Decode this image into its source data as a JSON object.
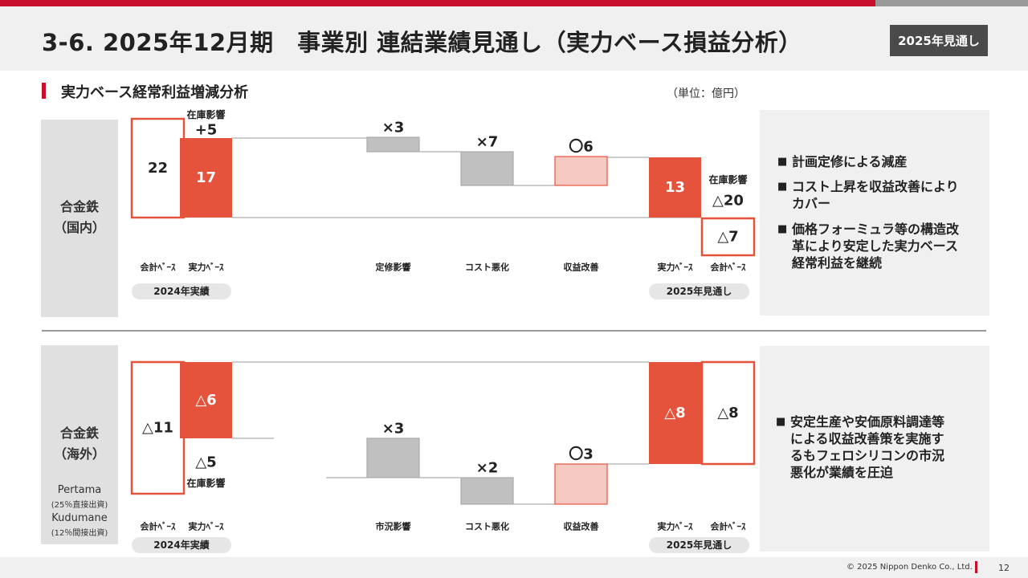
{
  "header": {
    "title": "3-6. 2025年12月期　事業別 連結業績見通し（実力ベース損益分析）",
    "badge": "2025年見通し"
  },
  "section": {
    "title": "実力ベース経常利益増減分析",
    "unit": "（単位：億円）"
  },
  "colors": {
    "accent_red": "#e5533d",
    "light_red": "#f6c8c2",
    "gray_bar": "#c0c0c0",
    "brand_red": "#c8102e"
  },
  "domestic": {
    "label_line1": "合金鉄",
    "label_line2": "（国内）",
    "period_start": "2024年実績",
    "period_end": "2025年見通し",
    "bullets": [
      [
        "計画定修による減産"
      ],
      [
        "コスト上昇を収益改善により",
        "カバー"
      ],
      [
        "価格フォーミュラ等の構造改",
        "革により安定した実力ベース",
        "経常利益を継続"
      ]
    ],
    "chart_data": {
      "type": "waterfall",
      "bars": [
        {
          "label": "会計ﾍﾞｰｽ",
          "value": "22",
          "style": "outline"
        },
        {
          "label": "実力ﾍﾞｰｽ",
          "value": "17",
          "style": "red",
          "note": "在庫影響",
          "note_value": "+5"
        },
        {
          "label": "定修影響",
          "value": "×3",
          "style": "gray"
        },
        {
          "label": "コスト悪化",
          "value": "×7",
          "style": "gray"
        },
        {
          "label": "収益改善",
          "value": "〇6",
          "style": "light"
        },
        {
          "label": "実力ﾍﾞｰｽ",
          "value": "13",
          "style": "red"
        },
        {
          "label": "会計ﾍﾞｰｽ",
          "value": "△7",
          "style": "outline",
          "note": "在庫影響",
          "note_value": "△20"
        }
      ]
    }
  },
  "overseas": {
    "label_line1": "合金鉄",
    "label_line2": "（海外）",
    "sub1": "Pertama",
    "sub1_note": "(25％直接出資)",
    "sub2": "Kudumane",
    "sub2_note": "(12％間接出資)",
    "period_start": "2024年実績",
    "period_end": "2025年見通し",
    "bullets": [
      [
        "安定生産や安価原料調達等",
        "による収益改善策を実施す",
        "るもフェロシリコンの市況",
        "悪化が業績を圧迫"
      ]
    ],
    "chart_data": {
      "type": "waterfall",
      "bars": [
        {
          "label": "会計ﾍﾞｰｽ",
          "value": "△11",
          "style": "outline"
        },
        {
          "label": "実力ﾍﾞｰｽ",
          "value": "△6",
          "style": "red",
          "note": "在庫影響",
          "note_value": "△5"
        },
        {
          "label": "市況影響",
          "value": "×3",
          "style": "gray"
        },
        {
          "label": "コスト悪化",
          "value": "×2",
          "style": "gray"
        },
        {
          "label": "収益改善",
          "value": "〇3",
          "style": "light"
        },
        {
          "label": "実力ﾍﾞｰｽ",
          "value": "△8",
          "style": "red"
        },
        {
          "label": "会計ﾍﾞｰｽ",
          "value": "△8",
          "style": "outline"
        }
      ]
    }
  },
  "footer": {
    "copyright": "© 2025 Nippon Denko Co., Ltd.",
    "page": "12"
  }
}
